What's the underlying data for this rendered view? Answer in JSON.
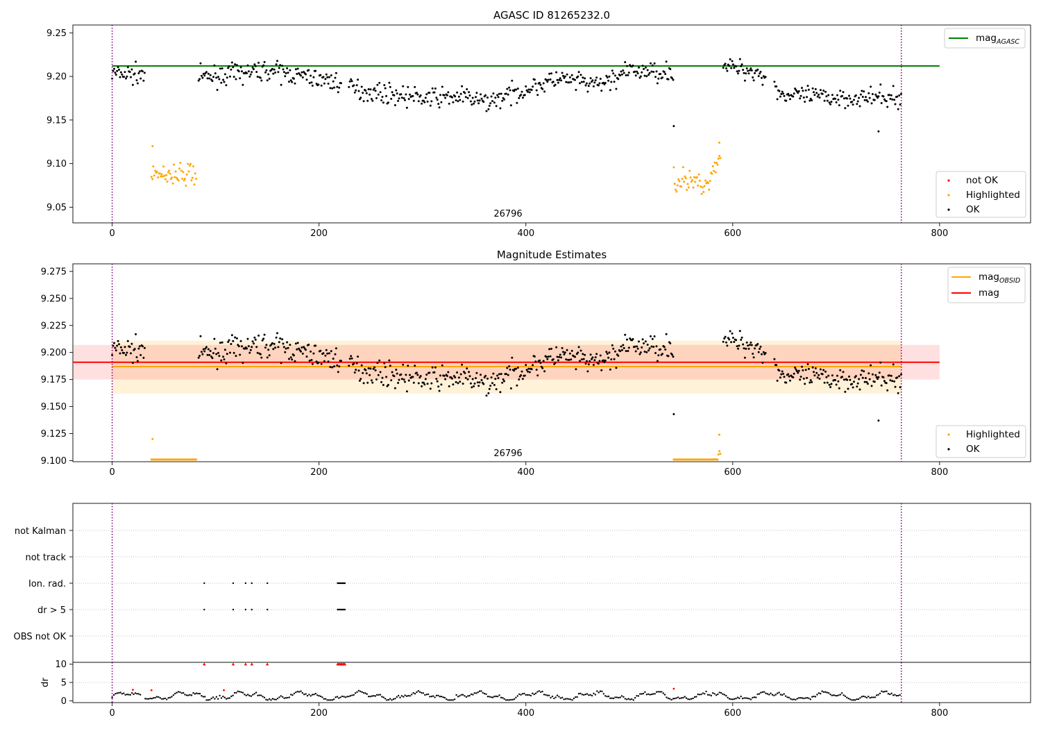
{
  "figure": {
    "obsid_label": "26796"
  },
  "chart_data": [
    {
      "id": "magnitude_timeline",
      "type": "scatter",
      "title": "AGASC ID 81265232.0",
      "xlabel": "",
      "ylabel": "",
      "xlim": [
        -38,
        888
      ],
      "ylim": [
        9.032,
        9.259
      ],
      "xticks": [
        0,
        200,
        400,
        600,
        800
      ],
      "yticks": [
        9.05,
        9.1,
        9.15,
        9.2,
        9.25
      ],
      "ytick_labels": [
        "9.05",
        "9.10",
        "9.15",
        "9.20",
        "9.25"
      ],
      "vlines": [
        0,
        763
      ],
      "hlines": [
        {
          "name": "mag_AGASC",
          "value": 9.212,
          "x_range": [
            0,
            800
          ],
          "color": "#008000"
        }
      ],
      "legend": {
        "placement": "lower-right",
        "entries": [
          {
            "label": "not OK",
            "color": "#ff0000"
          },
          {
            "label": "Highlighted",
            "color": "#ffa500"
          },
          {
            "label": "OK",
            "color": "#000000"
          }
        ]
      },
      "legend_line": {
        "placement": "upper-right",
        "label": "mag",
        "subscript": "AGASC",
        "color": "#008000"
      },
      "series": [
        {
          "name": "OK",
          "color": "#000000",
          "points": "generated: ~760 samples, smooth trend 9.20 (0-220) → 9.175 (230-480) → 9.205 (490-540) → 9.21 (580-630) → 9.175 (650-763)"
        },
        {
          "name": "Highlighted",
          "color": "#ffa500",
          "segments": [
            {
              "x": [
                38,
                82
              ],
              "y_mean": 9.088
            },
            {
              "x": [
                543,
                588
              ],
              "y_mean": 9.08
            }
          ]
        }
      ],
      "annotations": [
        {
          "text": "26796",
          "x": 382,
          "position": "bottom-center"
        }
      ]
    },
    {
      "id": "magnitude_estimates",
      "type": "scatter",
      "title": "Magnitude Estimates",
      "xlabel": "",
      "ylabel": "",
      "xlim": [
        -38,
        888
      ],
      "ylim": [
        9.099,
        9.282
      ],
      "xticks": [
        0,
        200,
        400,
        600,
        800
      ],
      "yticks": [
        9.1,
        9.125,
        9.15,
        9.175,
        9.2,
        9.225,
        9.25,
        9.275
      ],
      "ytick_labels": [
        "9.100",
        "9.125",
        "9.150",
        "9.175",
        "9.200",
        "9.225",
        "9.250",
        "9.275"
      ],
      "vlines": [
        0,
        763
      ],
      "bands": [
        {
          "name": "mag_OBSID",
          "value": 9.187,
          "low": 9.162,
          "high": 9.211,
          "x_range": [
            0,
            763
          ],
          "color": "#ffa500"
        },
        {
          "name": "mag",
          "value": 9.191,
          "low": 9.175,
          "high": 9.207,
          "x_range": [
            -38,
            800
          ],
          "color": "#ff0000"
        }
      ],
      "legend": {
        "placement": "lower-right",
        "entries": [
          {
            "label": "Highlighted",
            "color": "#ffa500"
          },
          {
            "label": "OK",
            "color": "#000000"
          }
        ]
      },
      "legend_lines": {
        "placement": "upper-right",
        "entries": [
          {
            "label": "mag",
            "subscript": "OBSID",
            "color": "#ffa500"
          },
          {
            "label": "mag",
            "subscript": "",
            "color": "#ff0000"
          }
        ]
      },
      "annotations": [
        {
          "text": "26796",
          "x": 382,
          "position": "bottom-center"
        }
      ]
    },
    {
      "id": "flags",
      "type": "scatter",
      "xlim": [
        -38,
        888
      ],
      "categories": [
        "not Kalman",
        "not track",
        "Ion. rad.",
        "dr > 5",
        "OBS not OK"
      ],
      "vlines": [
        0,
        763
      ],
      "flag_points": {
        "Ion. rad.": [
          89,
          117,
          129,
          135,
          150,
          218,
          219,
          220,
          221,
          222,
          223,
          224,
          225
        ],
        "dr > 5": [
          89,
          117,
          129,
          135,
          150,
          218,
          219,
          220,
          221,
          222,
          223,
          224,
          225
        ]
      }
    },
    {
      "id": "dr",
      "type": "scatter",
      "ylabel": "dr",
      "xlim": [
        -38,
        888
      ],
      "ylim": [
        -0.5,
        10.5
      ],
      "xticks": [
        0,
        200,
        400,
        600,
        800
      ],
      "yticks": [
        0,
        5,
        10
      ],
      "ytick_labels": [
        "0",
        "5",
        "10"
      ],
      "clip_value": 10,
      "vlines": [
        0,
        763
      ],
      "red_markers_at_clip": [
        89,
        117,
        129,
        135,
        150,
        218,
        219,
        220,
        221,
        222,
        223,
        224,
        225
      ],
      "red_points": [
        {
          "x": 20,
          "y": 3.0
        },
        {
          "x": 38,
          "y": 2.9
        },
        {
          "x": 108,
          "y": 2.9
        },
        {
          "x": 543,
          "y": 3.3
        }
      ]
    }
  ]
}
